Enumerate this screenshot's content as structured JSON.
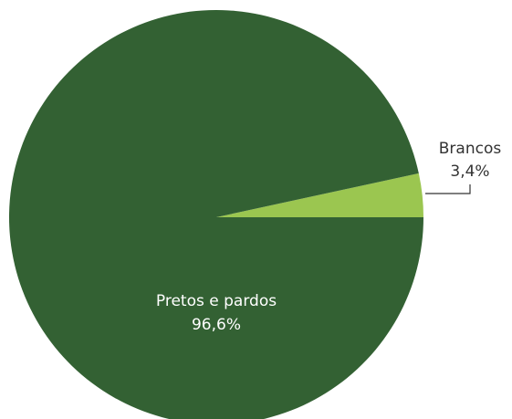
{
  "chart_data": {
    "type": "pie",
    "title": "",
    "slices": [
      {
        "label": "Brancos",
        "value": 3.4,
        "value_label": "3,4%",
        "color": "#9bc650",
        "label_position": "outside"
      },
      {
        "label": "Pretos e pardos",
        "value": 96.6,
        "value_label": "96,6%",
        "color": "#336133",
        "label_position": "inside"
      }
    ],
    "start_direction": "east",
    "direction": "counterclockwise",
    "legend": "none"
  }
}
